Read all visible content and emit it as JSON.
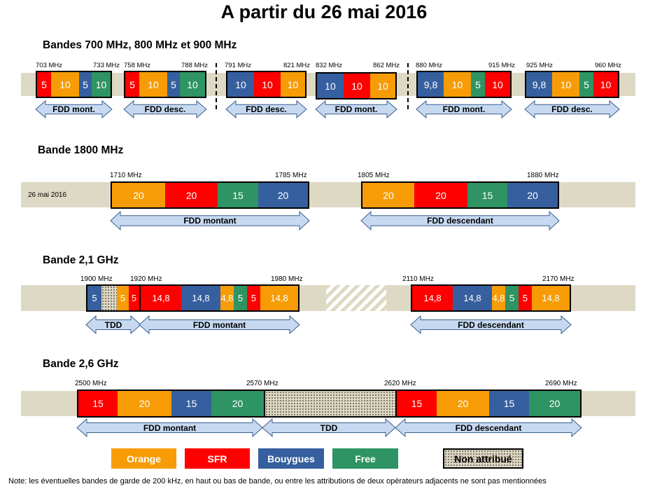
{
  "title": "A partir du 26 mai 2016",
  "sections": {
    "s1": "Bandes 700 MHz, 800 MHz et 900 MHz",
    "s2": "Bande 1800 MHz",
    "s3": "Bande 2,1 GHz",
    "s4": "Bande 2,6 GHz"
  },
  "band_low": {
    "freqs": [
      "703 MHz",
      "733 MHz",
      "758 MHz",
      "788 MHz",
      "791 MHz",
      "821 MHz",
      "832 MHz",
      "862 MHz",
      "880 MHz",
      "915 MHz",
      "925 MHz",
      "960 MHz"
    ],
    "b700_up": [
      "5",
      "10",
      "5",
      "10"
    ],
    "b700_down": [
      "5",
      "10",
      "5",
      "10"
    ],
    "b800_down": [
      "10",
      "10",
      "10"
    ],
    "b800_up": [
      "10",
      "10",
      "10"
    ],
    "b900_up": [
      "9,8",
      "10",
      "5",
      "10"
    ],
    "b900_down": [
      "9,8",
      "10",
      "5",
      "10"
    ],
    "arrows": [
      "FDD mont.",
      "FDD desc.",
      "FDD desc.",
      "FDD mont.",
      "FDD mont.",
      "FDD desc."
    ]
  },
  "band_1800": {
    "date": "26 mai 2016",
    "freqs": [
      "1710 MHz",
      "1785 MHz",
      "1805 MHz",
      "1880 MHz"
    ],
    "up": [
      "20",
      "20",
      "15",
      "20"
    ],
    "down": [
      "20",
      "20",
      "15",
      "20"
    ],
    "arrows": [
      "FDD montant",
      "FDD descendant"
    ]
  },
  "band_2100": {
    "freqs": [
      "1900 MHz",
      "1920 MHz",
      "1980 MHz",
      "2110 MHz",
      "2170 MHz"
    ],
    "tdd": [
      "5",
      "5",
      "5"
    ],
    "up": [
      "14,8",
      "14,8",
      "4,8",
      "5",
      "5",
      "14,8"
    ],
    "down": [
      "14,8",
      "14,8",
      "4,8",
      "5",
      "5",
      "14,8"
    ],
    "arrows": [
      "TDD",
      "FDD montant",
      "FDD descendant"
    ]
  },
  "band_2600": {
    "freqs": [
      "2500 MHz",
      "2570 MHz",
      "2620 MHz",
      "2690 MHz"
    ],
    "up": [
      "15",
      "20",
      "15",
      "20"
    ],
    "down": [
      "15",
      "20",
      "15",
      "20"
    ],
    "arrows": [
      "FDD montant",
      "TDD",
      "FDD descendant"
    ]
  },
  "legend": [
    "Orange",
    "SFR",
    "Bouygues",
    "Free",
    "Non attribué"
  ],
  "colors": {
    "orange": "#f79c06",
    "sfr": "#ff0000",
    "bouygues": "#355f9e",
    "free": "#2e9463",
    "strip": "#ddd9c4",
    "arrow_fill": "#c6d9f1"
  },
  "note": "Note: les éventuelles bandes de garde de 200 kHz, en haut ou bas de bande, ou entre les attributions de deux opérateurs adjacents ne sont pas mentionnées"
}
